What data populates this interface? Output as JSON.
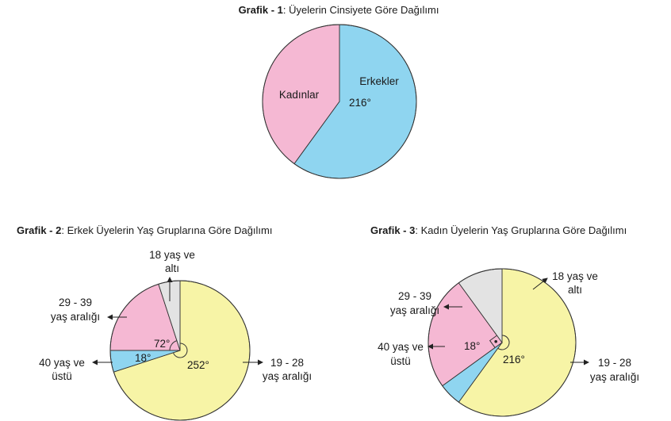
{
  "colors": {
    "blue": "#8fd5f0",
    "pink": "#f5b8d3",
    "yellow": "#f7f4a6",
    "gray": "#e3e3e3",
    "stroke": "#333333"
  },
  "chart_data": [
    {
      "type": "pie",
      "title_bold": "Grafik - 1",
      "title_rest": ": Üyelerin Cinsiyete Göre Dağılımı",
      "slices": [
        {
          "label": "Erkekler",
          "value": 216,
          "color": "#8fd5f0",
          "angle_label": "216°"
        },
        {
          "label": "Kadınlar",
          "value": 144,
          "color": "#f5b8d3"
        }
      ]
    },
    {
      "type": "pie",
      "title_bold": "Grafik - 2",
      "title_rest": ": Erkek Üyelerin Yaş Gruplarına Göre Dağılımı",
      "slices": [
        {
          "label_lines": [
            "19 - 28",
            "yaş aralığı"
          ],
          "value": 252,
          "color": "#f7f4a6",
          "angle_label": "252°"
        },
        {
          "label_lines": [
            "40 yaş ve",
            "üstü"
          ],
          "value": 18,
          "color": "#8fd5f0",
          "angle_label": "18°"
        },
        {
          "label_lines": [
            "29 - 39",
            "yaş aralığı"
          ],
          "value": 72,
          "color": "#f5b8d3",
          "angle_label": "72°"
        },
        {
          "label_lines": [
            "18 yaş ve",
            "altı"
          ],
          "value": 18,
          "color": "#e3e3e3"
        }
      ]
    },
    {
      "type": "pie",
      "title_bold": "Grafik - 3",
      "title_rest": ": Kadın Üyelerin Yaş Gruplarına Göre Dağılımı",
      "slices": [
        {
          "label_lines": [
            "19 - 28",
            "yaş aralığı"
          ],
          "value": 216,
          "color": "#f7f4a6",
          "angle_label": "216°"
        },
        {
          "label_lines": [
            "40 yaş ve",
            "üstü"
          ],
          "value": 18,
          "color": "#8fd5f0",
          "angle_label": "18°"
        },
        {
          "label_lines": [
            "29 - 39",
            "yaş aralığı"
          ],
          "value": 90,
          "color": "#f5b8d3",
          "right_angle": true
        },
        {
          "label_lines": [
            "18 yaş ve",
            "altı"
          ],
          "value": 36,
          "color": "#e3e3e3"
        }
      ]
    }
  ]
}
